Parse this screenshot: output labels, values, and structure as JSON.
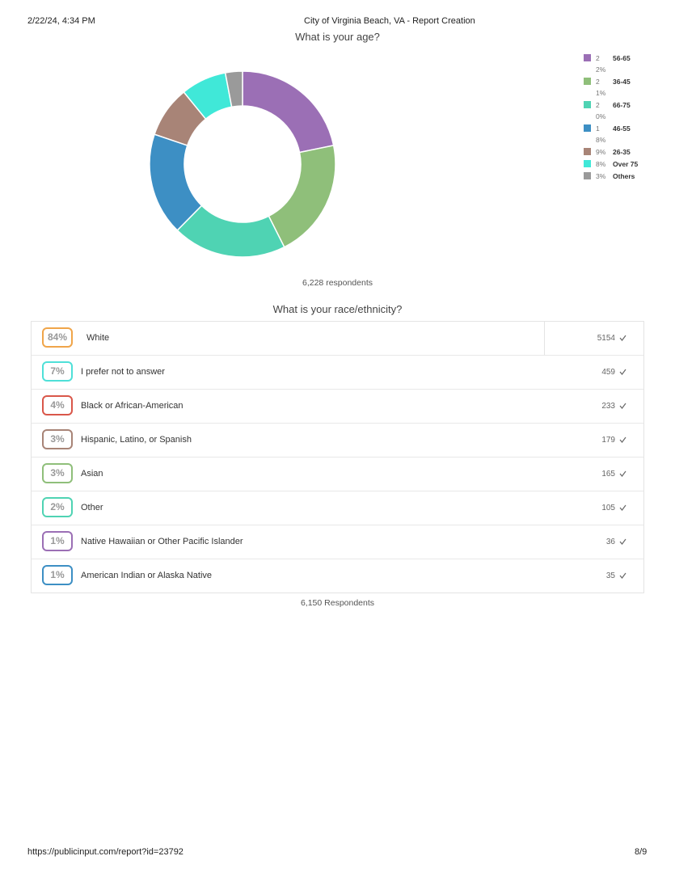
{
  "header": {
    "date": "2/22/24, 4:34 PM",
    "title": "City of Virginia Beach, VA - Report Creation"
  },
  "chart_data": {
    "type": "donut",
    "title": "What is your age?",
    "categories": [
      "56-65",
      "36-45",
      "66-75",
      "46-55",
      "26-35",
      "Over 75",
      "Others"
    ],
    "values": [
      22,
      21,
      20,
      18,
      9,
      8,
      3
    ],
    "value_labels": [
      "22%",
      "21%",
      "20%",
      "18%",
      "9%",
      "8%",
      "3%"
    ],
    "colors": [
      "#9b6fb5",
      "#8fbf7a",
      "#4fd3b3",
      "#3d8fc4",
      "#a88477",
      "#40e8d8",
      "#9a9a9a"
    ],
    "footnote": "6,228 respondents"
  },
  "table": {
    "title": "What is your race/ethnicity?",
    "rows": [
      {
        "percent": "84%",
        "label": "White",
        "count": 5154,
        "color": "#f0a54a"
      },
      {
        "percent": "7%",
        "label": "I prefer not to answer",
        "count": 459,
        "color": "#4fe0d8"
      },
      {
        "percent": "4%",
        "label": "Black or African-American",
        "count": 233,
        "color": "#d9574a"
      },
      {
        "percent": "3%",
        "label": "Hispanic, Latino, or Spanish",
        "count": 179,
        "color": "#a88477"
      },
      {
        "percent": "3%",
        "label": "Asian",
        "count": 165,
        "color": "#8fbf7a"
      },
      {
        "percent": "2%",
        "label": "Other",
        "count": 105,
        "color": "#4fd3b3"
      },
      {
        "percent": "1%",
        "label": "Native Hawaiian or Other Pacific Islander",
        "count": 36,
        "color": "#9b6fb5"
      },
      {
        "percent": "1%",
        "label": "American Indian or Alaska Native",
        "count": 35,
        "color": "#3d8fc4"
      }
    ],
    "footnote": "6,150 Respondents"
  },
  "footer": {
    "url": "https://publicinput.com/report?id=23792",
    "page": "8/9"
  }
}
